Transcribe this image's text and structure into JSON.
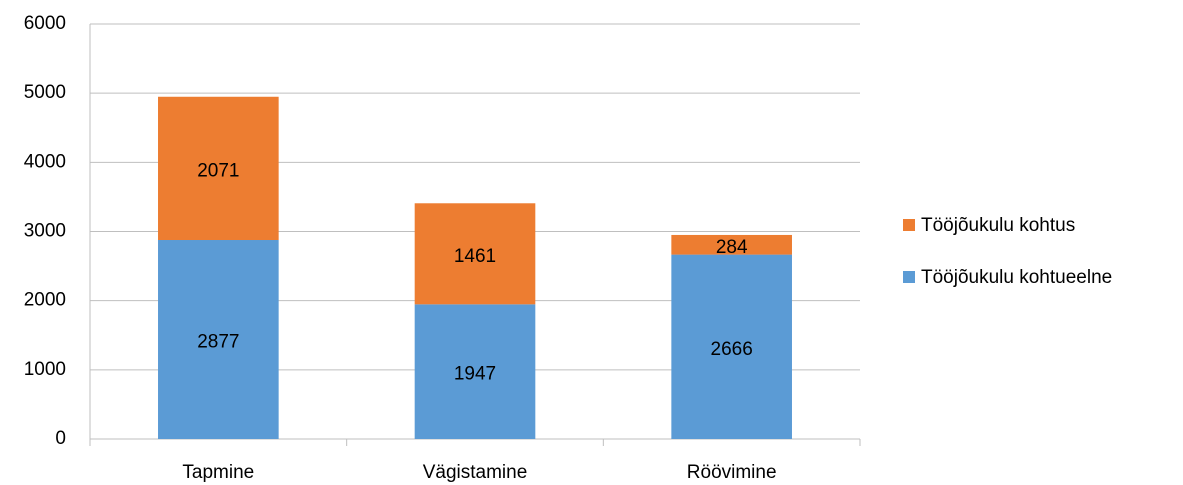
{
  "chart_data": {
    "type": "stacked_bar",
    "categories": [
      "Tapmine",
      "Vägistamine",
      "Röövimine"
    ],
    "series": [
      {
        "name": "Tööjõukulu kohtueelne",
        "color": "#5b9bd5",
        "values": [
          2877,
          1947,
          2666
        ]
      },
      {
        "name": "Tööjõukulu kohtus",
        "color": "#ed7d31",
        "values": [
          2071,
          1461,
          284
        ]
      }
    ],
    "ylim": [
      0,
      6000
    ],
    "yticks": [
      0,
      1000,
      2000,
      3000,
      4000,
      5000,
      6000
    ],
    "grid": true,
    "legend": "right"
  }
}
